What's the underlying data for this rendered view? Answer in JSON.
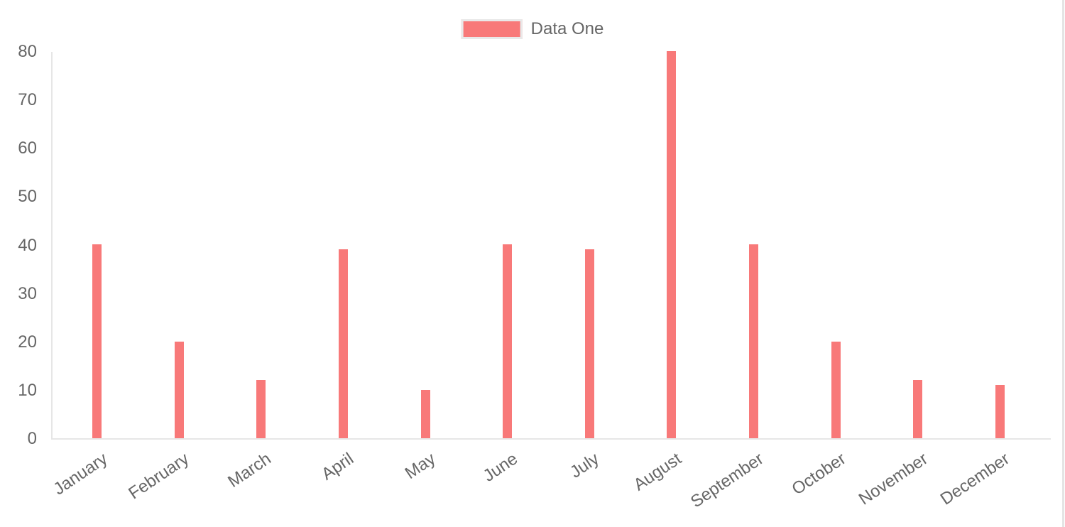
{
  "legend": {
    "label": "Data One"
  },
  "colors": {
    "bar": "#f87979",
    "axis": "#e6e6e6",
    "tick_text": "#666666",
    "legend_swatch_border": "#e9e9e9",
    "page_border": "#e4e4e4",
    "background": "#ffffff"
  },
  "chart_data": {
    "type": "bar",
    "title": "",
    "xlabel": "",
    "ylabel": "",
    "categories": [
      "January",
      "February",
      "March",
      "April",
      "May",
      "June",
      "July",
      "August",
      "September",
      "October",
      "November",
      "December"
    ],
    "series": [
      {
        "name": "Data One",
        "values": [
          40,
          20,
          12,
          39,
          10,
          40,
          39,
          80,
          40,
          20,
          12,
          11
        ]
      }
    ],
    "ylim": [
      0,
      80
    ],
    "yticks": [
      0,
      10,
      20,
      30,
      40,
      50,
      60,
      70,
      80
    ],
    "grid": false,
    "legend_position": "top"
  }
}
